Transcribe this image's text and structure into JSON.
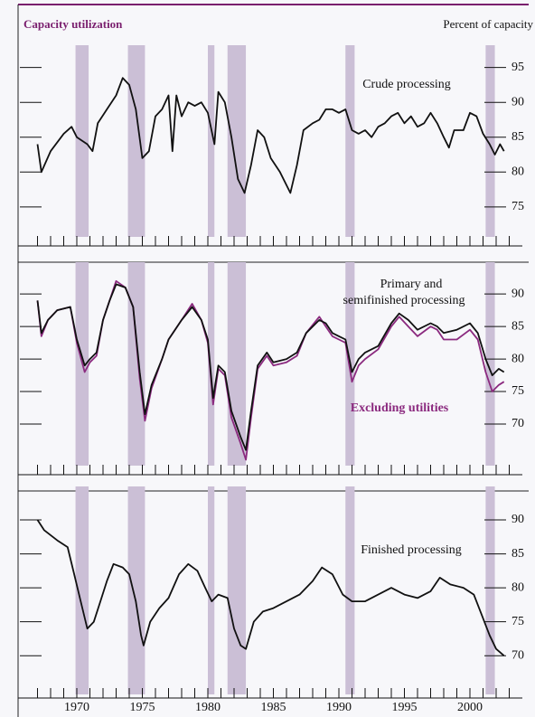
{
  "header": {
    "title": "Capacity utilization",
    "unit": "Percent of capacity"
  },
  "chart_data": [
    {
      "type": "line",
      "annotations": [
        "Crude processing"
      ],
      "ylim": [
        70.7,
        96.9
      ],
      "yticks": [
        75,
        80,
        85,
        90,
        95
      ],
      "xlim": [
        1966,
        2004
      ],
      "recessions": [
        [
          1969.9,
          1970.9
        ],
        [
          1973.9,
          1975.2
        ],
        [
          1980.0,
          1980.5
        ],
        [
          1981.5,
          1982.9
        ],
        [
          1990.5,
          1991.2
        ],
        [
          2001.2,
          2001.9
        ]
      ],
      "xminor": [
        1967,
        1968,
        1969,
        1970,
        1971,
        1972,
        1973,
        1974,
        1975,
        1976,
        1977,
        1978,
        1979,
        1980,
        1981,
        1982,
        1983,
        1984,
        1985,
        1986,
        1987,
        1988,
        1989,
        1990,
        1991,
        1992,
        1993,
        1994,
        1995,
        1996,
        1997,
        1998,
        1999,
        2000,
        2001,
        2002,
        2003
      ],
      "x": [
        1967.0,
        1967.3,
        1968,
        1969,
        1969.6,
        1970,
        1970.8,
        1971.2,
        1971.6,
        1972.3,
        1973,
        1973.5,
        1974,
        1974.5,
        1975,
        1975.5,
        1976,
        1976.5,
        1977,
        1977.3,
        1977.6,
        1978,
        1978.5,
        1979,
        1979.5,
        1980.0,
        1980.5,
        1980.8,
        1981.3,
        1981.8,
        1982.3,
        1982.8,
        1983.3,
        1983.8,
        1984.3,
        1984.8,
        1985.5,
        1986.3,
        1986.8,
        1987.3,
        1988,
        1988.5,
        1989,
        1989.5,
        1990,
        1990.5,
        1991,
        1991.5,
        1992,
        1992.5,
        1993,
        1993.5,
        1994,
        1994.5,
        1995,
        1995.5,
        1996,
        1996.5,
        1997,
        1997.5,
        1998,
        1998.4,
        1998.8,
        1999.5,
        2000,
        2000.5,
        2001,
        2001.5,
        2001.9,
        2002.3,
        2002.6
      ],
      "series": [
        {
          "color": "#111111",
          "values": [
            84,
            80,
            83,
            85.5,
            86.5,
            85,
            84,
            83,
            87,
            89,
            91,
            93.5,
            92.5,
            89,
            82,
            83,
            88,
            89,
            91,
            83,
            91,
            88,
            90,
            89.5,
            90,
            88.5,
            84,
            91.5,
            90,
            85,
            79,
            77,
            81,
            86,
            85,
            82,
            80,
            77,
            81,
            86,
            87,
            87.5,
            89,
            89,
            88.5,
            89,
            86,
            85.5,
            86,
            85,
            86.5,
            87,
            88,
            88.5,
            87,
            88,
            86.5,
            87,
            88.5,
            87,
            85,
            83.5,
            86,
            86,
            88.5,
            88,
            85.5,
            84,
            82.5,
            84,
            83
          ]
        }
      ]
    },
    {
      "type": "line",
      "annotations": [
        "Primary and",
        "semifinished processing"
      ],
      "ylim": [
        63.6,
        93.5
      ],
      "yticks": [
        70,
        75,
        80,
        85,
        90
      ],
      "xlim": [
        1966,
        2004
      ],
      "recessions": [
        [
          1969.9,
          1970.9
        ],
        [
          1973.9,
          1975.2
        ],
        [
          1980.0,
          1980.5
        ],
        [
          1981.5,
          1982.9
        ],
        [
          1990.5,
          1991.2
        ],
        [
          2001.2,
          2001.9
        ]
      ],
      "xminor": [
        1967,
        1968,
        1969,
        1970,
        1971,
        1972,
        1973,
        1974,
        1975,
        1976,
        1977,
        1978,
        1979,
        1980,
        1981,
        1982,
        1983,
        1984,
        1985,
        1986,
        1987,
        1988,
        1989,
        1990,
        1991,
        1992,
        1993,
        1994,
        1995,
        1996,
        1997,
        1998,
        1999,
        2000,
        2001,
        2002,
        2003
      ],
      "x": [
        1967.0,
        1967.3,
        1967.8,
        1968.5,
        1969.5,
        1970,
        1970.6,
        1971,
        1971.5,
        1972,
        1972.5,
        1973,
        1973.7,
        1974.3,
        1974.8,
        1975.2,
        1975.7,
        1976.5,
        1977,
        1978,
        1978.8,
        1979.5,
        1980.0,
        1980.4,
        1980.8,
        1981.3,
        1981.8,
        1982.5,
        1982.9,
        1983.3,
        1983.8,
        1984.5,
        1985,
        1986,
        1986.8,
        1987.5,
        1988.5,
        1989,
        1989.5,
        1990,
        1990.5,
        1991,
        1991.5,
        1992,
        1993,
        1994,
        1994.6,
        1995.3,
        1996,
        1997,
        1997.5,
        1998,
        1999,
        2000,
        2000.6,
        2001.2,
        2001.7,
        2002.2,
        2002.6
      ],
      "series": [
        {
          "name": "Excluding utilities",
          "color": "#8b2a7f",
          "values": [
            89,
            83.5,
            86,
            87.5,
            88,
            82.5,
            78,
            79.5,
            80.5,
            86,
            89,
            92,
            91,
            88,
            77,
            70.5,
            75.5,
            80,
            83,
            86,
            88.5,
            86,
            82.5,
            73,
            78.5,
            77.5,
            71,
            67,
            64.5,
            71,
            78.5,
            80.5,
            79,
            79.5,
            80.5,
            84,
            86.5,
            85,
            83.5,
            83,
            82.5,
            76.5,
            79,
            80,
            81.5,
            85,
            86.5,
            85,
            83.5,
            85,
            84.5,
            83,
            83,
            84.5,
            83,
            78,
            75,
            76,
            76.5
          ]
        },
        {
          "color": "#111111",
          "values": [
            89,
            84,
            86,
            87.5,
            88,
            83,
            79,
            80,
            81,
            86,
            89,
            91.5,
            91,
            88,
            78,
            71.5,
            76,
            80,
            83,
            86,
            88,
            86,
            83,
            74,
            79,
            78,
            72,
            68,
            66,
            72,
            79,
            81,
            79.5,
            80,
            81,
            84,
            86,
            85.5,
            84,
            83.5,
            83,
            78,
            80,
            81,
            82,
            85.5,
            87,
            86,
            84.5,
            85.5,
            85,
            84,
            84.5,
            85.5,
            84,
            80,
            77.5,
            78.5,
            78
          ]
        }
      ]
    },
    {
      "type": "line",
      "annotations": [
        "Finished processing"
      ],
      "ylim": [
        64.3,
        93.6
      ],
      "yticks": [
        70,
        75,
        80,
        85,
        90
      ],
      "xlim": [
        1966,
        2004
      ],
      "xticks": [
        1970,
        1975,
        1980,
        1985,
        1990,
        1995,
        2000
      ],
      "recessions": [
        [
          1969.9,
          1970.9
        ],
        [
          1973.9,
          1975.2
        ],
        [
          1980.0,
          1980.5
        ],
        [
          1981.5,
          1982.9
        ],
        [
          1990.5,
          1991.2
        ],
        [
          2001.2,
          2001.9
        ]
      ],
      "xminor": [
        1967,
        1968,
        1969,
        1970,
        1971,
        1972,
        1973,
        1974,
        1975,
        1976,
        1977,
        1978,
        1979,
        1980,
        1981,
        1982,
        1983,
        1984,
        1985,
        1986,
        1987,
        1988,
        1989,
        1990,
        1991,
        1992,
        1993,
        1994,
        1995,
        1996,
        1997,
        1998,
        1999,
        2000,
        2001,
        2002,
        2003
      ],
      "x": [
        1967,
        1967.5,
        1968.5,
        1969.3,
        1969.8,
        1970.3,
        1970.8,
        1971.3,
        1971.8,
        1972.3,
        1972.8,
        1973.5,
        1974,
        1974.5,
        1974.9,
        1975.1,
        1975.6,
        1976.3,
        1977,
        1977.8,
        1978.5,
        1979.2,
        1979.8,
        1980.3,
        1980.8,
        1981.5,
        1982,
        1982.5,
        1982.9,
        1983.5,
        1984.2,
        1985,
        1986,
        1987,
        1988,
        1988.7,
        1989.5,
        1990.3,
        1991,
        1992,
        1993,
        1994,
        1995,
        1996,
        1997,
        1997.7,
        1998.5,
        1999.5,
        2000.3,
        2000.9,
        2001.5,
        2002,
        2002.6
      ],
      "series": [
        {
          "color": "#111111",
          "values": [
            90,
            88.5,
            87,
            86,
            82,
            78,
            74,
            75,
            78,
            81,
            83.5,
            83,
            82,
            78,
            73,
            71.5,
            75,
            77,
            78.5,
            82,
            83.5,
            82.5,
            80,
            78,
            79,
            78.5,
            74,
            71.5,
            71,
            75,
            76.5,
            77,
            78,
            79,
            81,
            83,
            82,
            79,
            78,
            78,
            79,
            80,
            79,
            78.5,
            79.5,
            81.5,
            80.5,
            80,
            79,
            76,
            73,
            71,
            70
          ]
        }
      ]
    }
  ]
}
